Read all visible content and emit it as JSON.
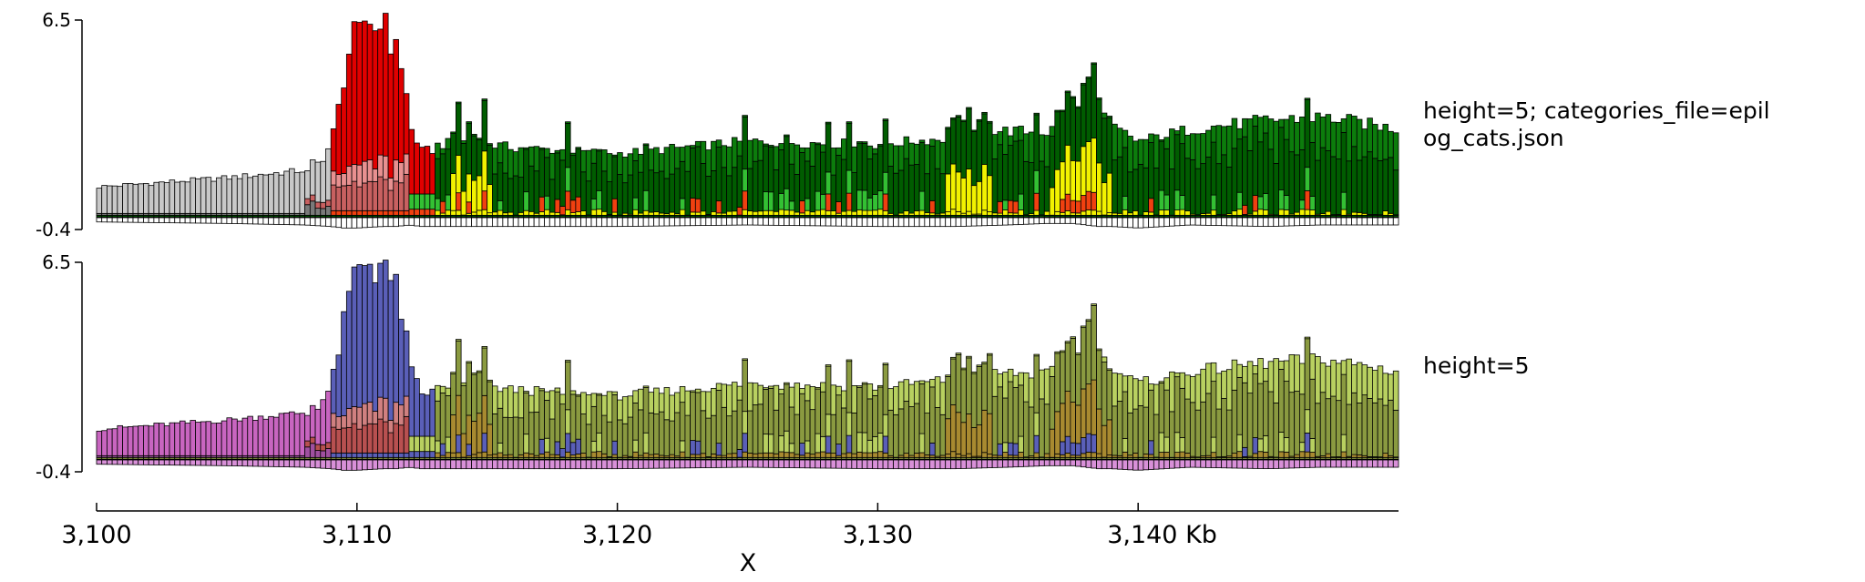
{
  "chart_data": {
    "type": "bar",
    "subtype": "stacked",
    "x_range_kb": [
      3100,
      3150
    ],
    "xlabel": "X",
    "x_ticks": [
      "3,100",
      "3,110",
      "3,120",
      "3,130",
      "3,140 Kb"
    ],
    "x_tick_values": [
      3100,
      3110,
      3120,
      3130,
      3140
    ],
    "tracks": [
      {
        "label_lines": [
          "height=5; categories_file=epil",
          "og_cats.json"
        ],
        "ylim": [
          -0.4,
          6.5
        ],
        "ytick_labels": [
          "6.5",
          "-0.4"
        ],
        "palette": {
          "base": "#c8c8c8",
          "shade": "#7a7a7a",
          "peak": "#e00000",
          "pink": "#e89090",
          "rose": "#c86060",
          "orange": "#f04010",
          "lime": "#33c033",
          "green": "#0c7c0c",
          "dgreen": "#005c00",
          "yellow": "#f2f200",
          "olive": "#b0b000"
        }
      },
      {
        "label_lines": [
          "height=5"
        ],
        "ylim": [
          -0.4,
          6.5
        ],
        "ytick_labels": [
          "6.5",
          "-0.4"
        ],
        "palette": {
          "base": "#c865c0",
          "shade": "#a050a0",
          "peak": "#5a5fb8",
          "pink": "#d08080",
          "rose": "#b85050",
          "orange": "#5a5fb8",
          "lime": "#b8d060",
          "green": "#b8d060",
          "dgreen": "#8a9a40",
          "yellow": "#a88a30",
          "olive": "#806020"
        }
      }
    ],
    "profile": {
      "x": [
        3100,
        3105,
        3108,
        3109,
        3109.5,
        3110,
        3111,
        3111.5,
        3112,
        3112.5,
        3114,
        3116,
        3120,
        3125,
        3130,
        3132.5,
        3133,
        3135,
        3136.5,
        3137.5,
        3138.5,
        3139,
        3140,
        3142,
        3145,
        3147,
        3148,
        3150
      ],
      "total": [
        1.0,
        1.3,
        1.55,
        2.6,
        4.9,
        6.5,
        6.3,
        5.9,
        3.2,
        2.3,
        2.5,
        2.3,
        2.1,
        2.5,
        2.4,
        2.6,
        2.9,
        2.85,
        2.8,
        3.3,
        3.4,
        3.0,
        2.5,
        2.9,
        3.2,
        3.3,
        3.2,
        2.9
      ],
      "negative": [
        -0.15,
        -0.2,
        -0.25,
        -0.3,
        -0.35,
        -0.35,
        -0.3,
        -0.3,
        -0.25,
        -0.3,
        -0.3,
        -0.3,
        -0.3,
        -0.25,
        -0.3,
        -0.3,
        -0.3,
        -0.25,
        -0.2,
        -0.2,
        -0.3,
        -0.3,
        -0.35,
        -0.25,
        -0.3,
        -0.25,
        -0.25,
        -0.25
      ]
    }
  }
}
